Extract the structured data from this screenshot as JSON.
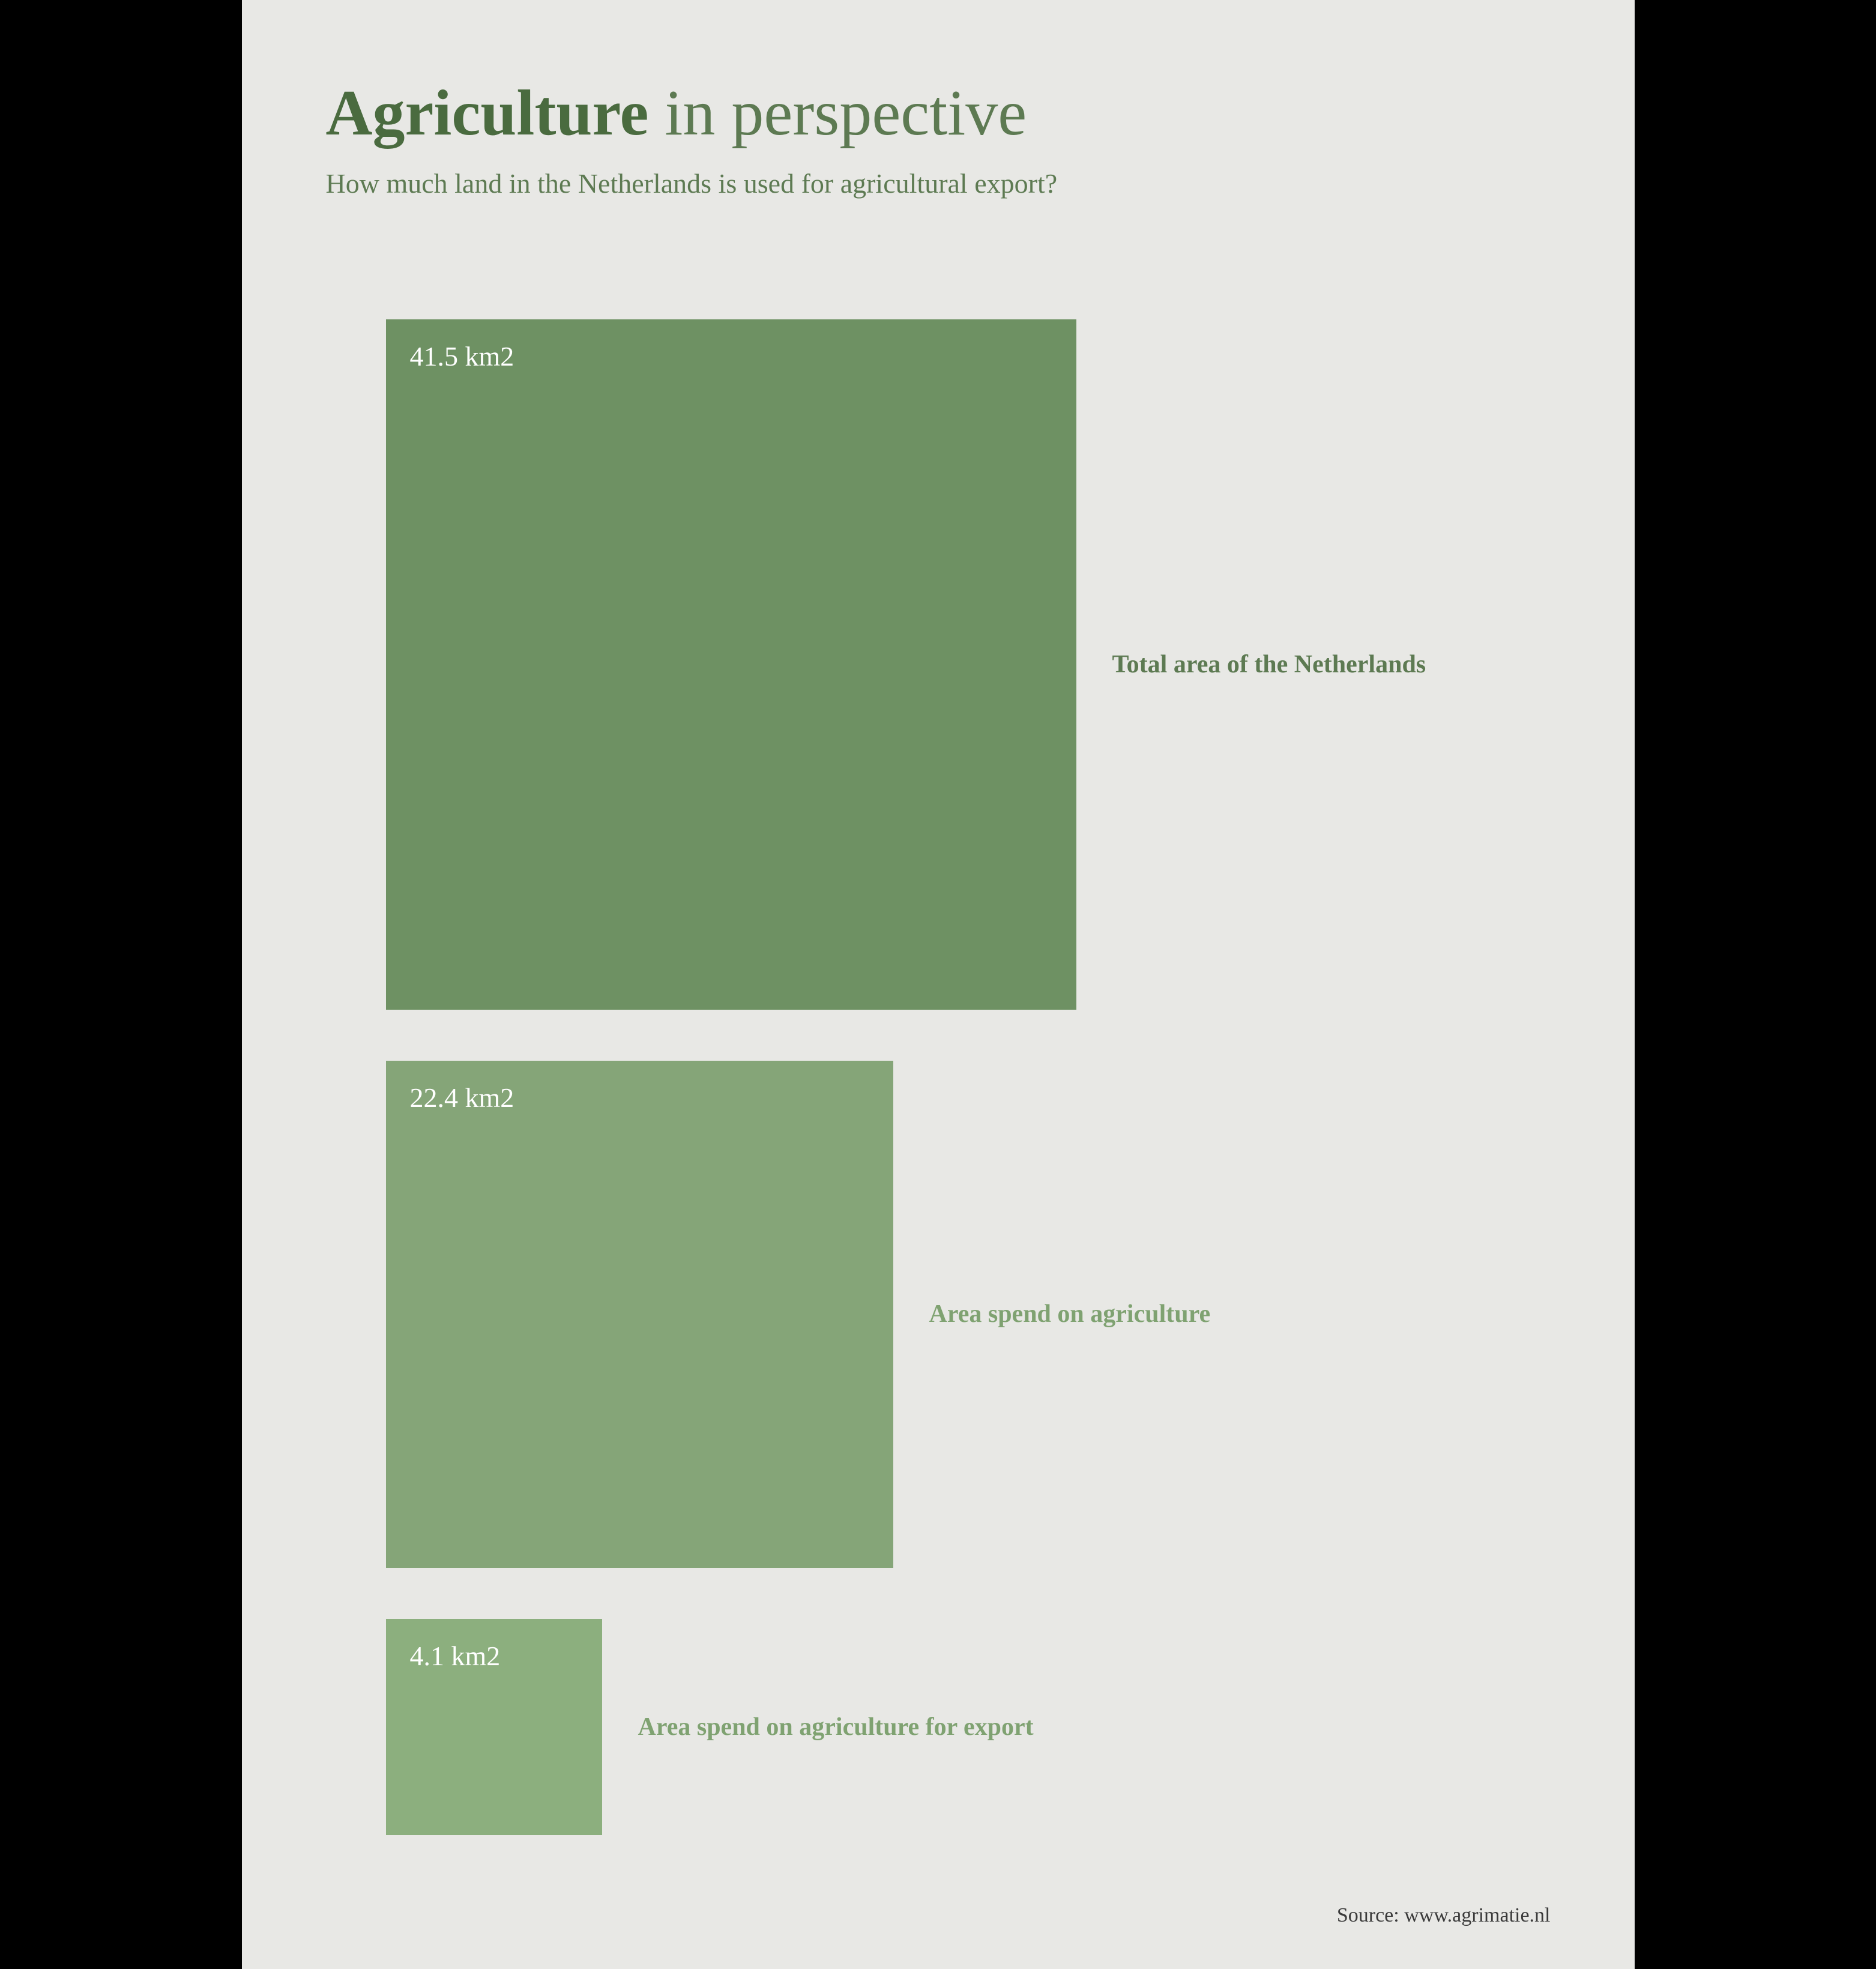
{
  "title": {
    "bold": "Agriculture",
    "light": " in perspective"
  },
  "subtitle": "How much land in the Netherlands is used for agricultural export?",
  "squares": [
    {
      "value": "41.5 km2",
      "label": "Total area of the Netherlands",
      "size": 1150,
      "color": "#6e9163",
      "label_color": "#5d7a52"
    },
    {
      "value": "22.4 km2",
      "label": "Area spend on agriculture",
      "size": 845,
      "color": "#85a578",
      "label_color": "#7fa271"
    },
    {
      "value": "4.1 km2",
      "label": "Area spend on agriculture for export",
      "size": 360,
      "color": "#8caf7e",
      "label_color": "#7fa271"
    }
  ],
  "source": "Source: www.agrimatie.nl",
  "styling": {
    "outer_background": "#000000",
    "poster_background": "#e8e8e5",
    "title_bold_color": "#4a6b3f",
    "title_light_color": "#5d7a52",
    "subtitle_color": "#5d7a52",
    "value_text_color": "#ffffff",
    "source_color": "#3a3a3a",
    "title_fontsize": 108,
    "subtitle_fontsize": 46,
    "value_fontsize": 46,
    "label_fontsize": 42,
    "source_fontsize": 34,
    "font_family": "Georgia, serif"
  }
}
